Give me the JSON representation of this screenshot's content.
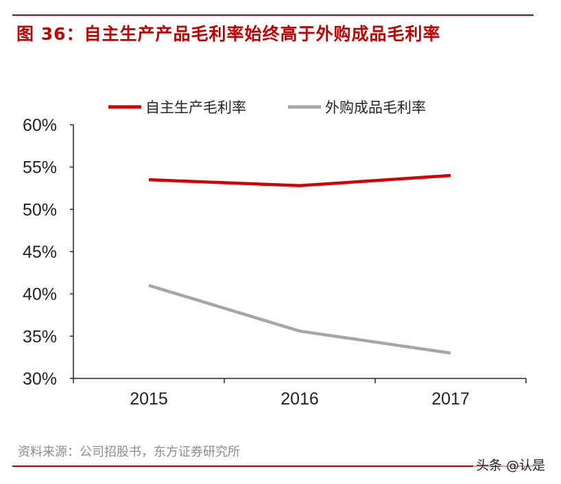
{
  "title": "图 36：自主生产产品毛利率始终高于外购成品毛利率",
  "source": "资料来源：公司招股书，东方证券研究所",
  "watermark": "头条 @认是",
  "chart_data": {
    "type": "line",
    "title": "图 36：自主生产产品毛利率始终高于外购成品毛利率",
    "categories": [
      "2015",
      "2016",
      "2017"
    ],
    "ylim": [
      30,
      60
    ],
    "yticks": [
      30,
      35,
      40,
      45,
      50,
      55,
      60
    ],
    "ytick_labels": [
      "30%",
      "35%",
      "40%",
      "45%",
      "50%",
      "55%",
      "60%"
    ],
    "yunit": "%",
    "grid": false,
    "legend": "top",
    "series": [
      {
        "name": "自主生产毛利率",
        "color": "#d40000",
        "values": [
          53.5,
          52.8,
          54.0
        ]
      },
      {
        "name": "外购成品毛利率",
        "color": "#a6a6a6",
        "values": [
          41.0,
          35.6,
          33.0
        ]
      }
    ]
  },
  "colors": {
    "accent": "#c00000"
  }
}
